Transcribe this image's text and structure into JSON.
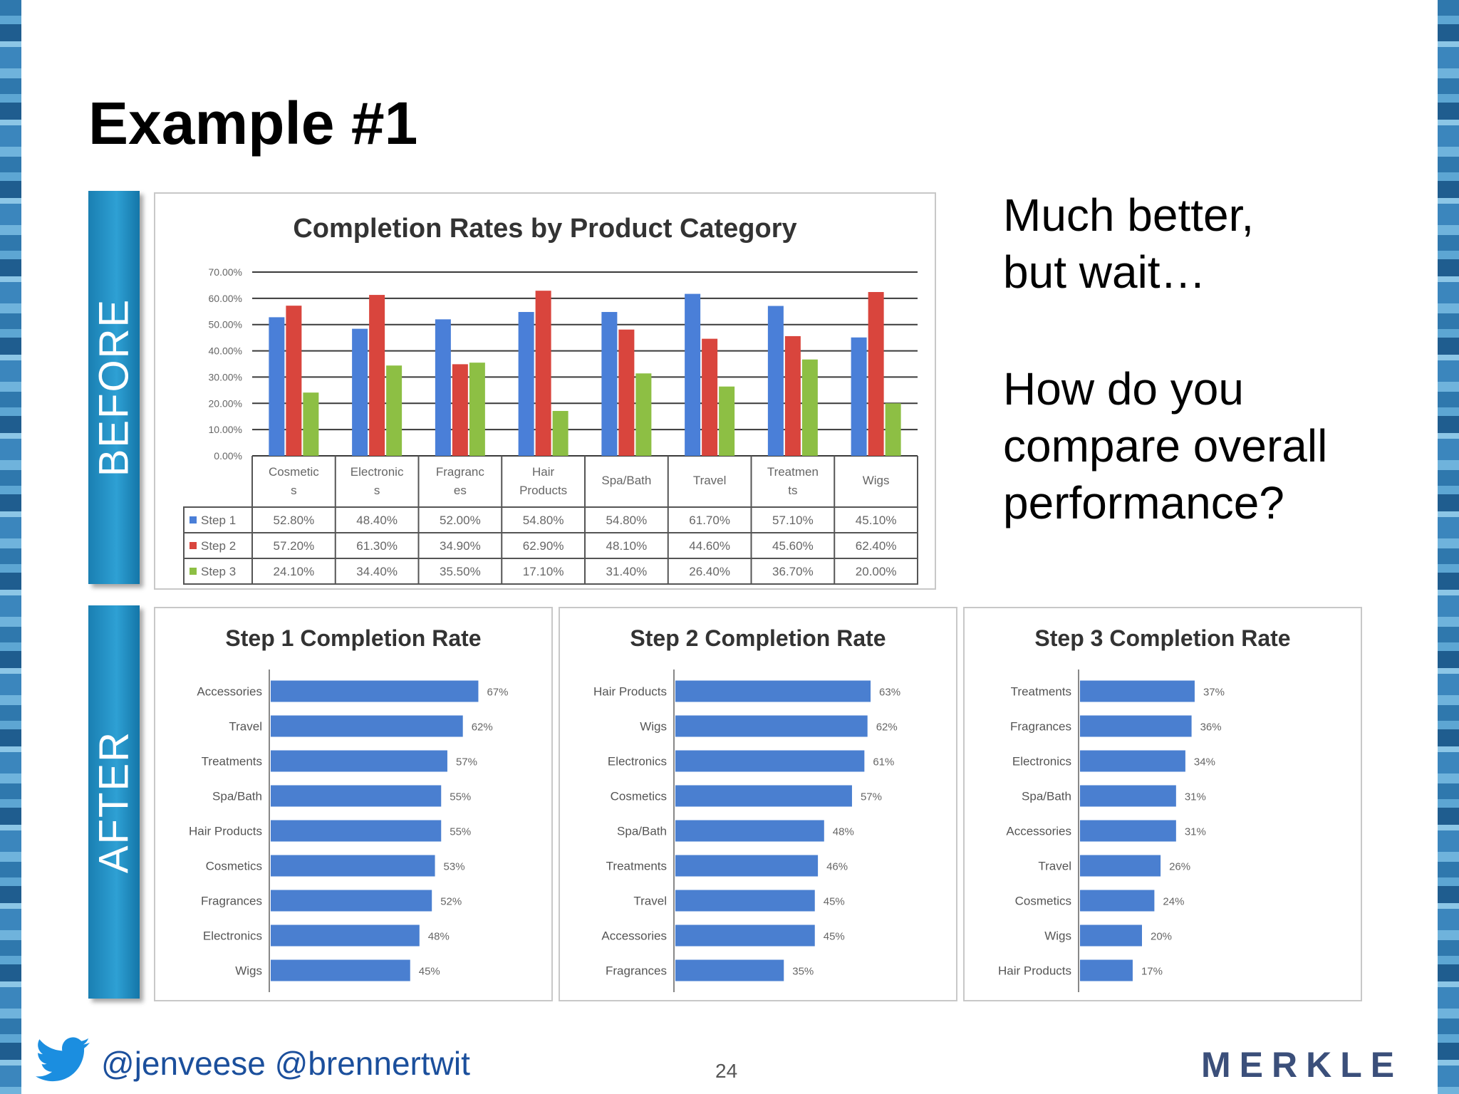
{
  "slide": {
    "title": "Example #1",
    "before_label": "BEFORE",
    "after_label": "AFTER",
    "side_text_1": [
      "Much better,",
      "but wait…"
    ],
    "side_text_2": [
      "How do you",
      "compare overall",
      "performance?"
    ],
    "handles": "@jenveese @brennertwit",
    "page_number": "24",
    "logo_text": "MERKLE"
  },
  "colors": {
    "step1": "#4a7fd8",
    "step2": "#d9453d",
    "step3": "#8dbf44",
    "bar": "#4a7fd0",
    "tab": "#1f8fc4",
    "stripe": "#2f78ad"
  },
  "icons": {
    "twitter": "twitter-bird-icon"
  },
  "chart_data": [
    {
      "type": "bar",
      "title": "Completion Rates by Product Category",
      "categories": [
        [
          "Cosmetic",
          "s"
        ],
        [
          "Electronic",
          "s"
        ],
        [
          "Fragranc",
          "es"
        ],
        [
          "Hair",
          "Products"
        ],
        [
          "Spa/Bath"
        ],
        [
          "Travel"
        ],
        [
          "Treatmen",
          "ts"
        ],
        [
          "Wigs"
        ]
      ],
      "yticks": [
        "0.00%",
        "10.00%",
        "20.00%",
        "30.00%",
        "40.00%",
        "50.00%",
        "60.00%",
        "70.00%"
      ],
      "ylim": [
        0,
        70
      ],
      "grid": true,
      "legend": "data-table",
      "series": [
        {
          "name": "Step 1",
          "values": [
            52.8,
            48.4,
            52.0,
            54.8,
            54.8,
            61.7,
            57.1,
            45.1
          ],
          "labels": [
            "52.80%",
            "48.40%",
            "52.00%",
            "54.80%",
            "54.80%",
            "61.70%",
            "57.10%",
            "45.10%"
          ]
        },
        {
          "name": "Step 2",
          "values": [
            57.2,
            61.3,
            34.9,
            62.9,
            48.1,
            44.6,
            45.6,
            62.4
          ],
          "labels": [
            "57.20%",
            "61.30%",
            "34.90%",
            "62.90%",
            "48.10%",
            "44.60%",
            "45.60%",
            "62.40%"
          ]
        },
        {
          "name": "Step 3",
          "values": [
            24.1,
            34.4,
            35.5,
            17.1,
            31.4,
            26.4,
            36.7,
            20.0
          ],
          "labels": [
            "24.10%",
            "34.40%",
            "35.50%",
            "17.10%",
            "31.40%",
            "26.40%",
            "36.70%",
            "20.00%"
          ]
        }
      ]
    },
    {
      "type": "bar",
      "orientation": "horizontal",
      "title": "Step 1 Completion Rate",
      "categories": [
        "Accessories",
        "Travel",
        "Treatments",
        "Spa/Bath",
        "Hair Products",
        "Cosmetics",
        "Fragrances",
        "Electronics",
        "Wigs"
      ],
      "values": [
        67,
        62,
        57,
        55,
        55,
        53,
        52,
        48,
        45
      ],
      "labels": [
        "67%",
        "62%",
        "57%",
        "55%",
        "55%",
        "53%",
        "52%",
        "48%",
        "45%"
      ]
    },
    {
      "type": "bar",
      "orientation": "horizontal",
      "title": "Step 2 Completion Rate",
      "categories": [
        "Hair Products",
        "Wigs",
        "Electronics",
        "Cosmetics",
        "Spa/Bath",
        "Treatments",
        "Travel",
        "Accessories",
        "Fragrances"
      ],
      "values": [
        63,
        62,
        61,
        57,
        48,
        46,
        45,
        45,
        35
      ],
      "labels": [
        "63%",
        "62%",
        "61%",
        "57%",
        "48%",
        "46%",
        "45%",
        "45%",
        "35%"
      ]
    },
    {
      "type": "bar",
      "orientation": "horizontal",
      "title": "Step 3 Completion Rate",
      "categories": [
        "Treatments",
        "Fragrances",
        "Electronics",
        "Spa/Bath",
        "Accessories",
        "Travel",
        "Cosmetics",
        "Wigs",
        "Hair Products"
      ],
      "values": [
        37,
        36,
        34,
        31,
        31,
        26,
        24,
        20,
        17
      ],
      "labels": [
        "37%",
        "36%",
        "34%",
        "31%",
        "31%",
        "26%",
        "24%",
        "20%",
        "17%"
      ]
    }
  ]
}
